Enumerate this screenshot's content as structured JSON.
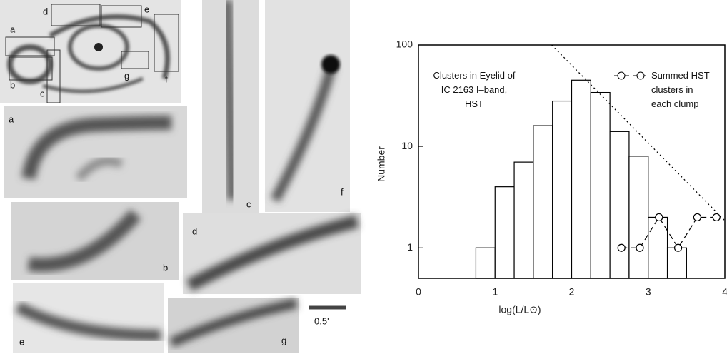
{
  "overview_labels": [
    "a",
    "b",
    "c",
    "d",
    "e",
    "f",
    "g"
  ],
  "panel_labels": [
    "a",
    "c",
    "f",
    "b",
    "d",
    "e",
    "g"
  ],
  "scale_label": "0.5'",
  "chart_data": {
    "type": "histogram",
    "annotation": "Clusters in Eyelid of IC 2163 I–band, HST",
    "xlabel": "log(L/L⊙)",
    "ylabel": "Number",
    "bins": [
      0.75,
      1.0,
      1.25,
      1.5,
      1.75,
      2.0,
      2.25,
      2.5,
      2.75,
      3.0,
      3.25,
      3.5
    ],
    "values": [
      1,
      4,
      7,
      16,
      28,
      45,
      34,
      14,
      8,
      2,
      1
    ],
    "color": "#000000",
    "reference_line": {
      "x": [
        1.74,
        4
      ],
      "values": [
        100,
        1.85
      ]
    },
    "series": [
      {
        "name": "Summed HST clusters in each clump",
        "color": "#000000",
        "x": [
          2.65,
          2.89,
          3.14,
          3.39,
          3.64,
          3.89
        ],
        "values": [
          1,
          1,
          2,
          1,
          2,
          2
        ]
      }
    ],
    "xlim": [
      0,
      4
    ],
    "ylim": [
      0.5,
      100
    ],
    "xticks": [
      0,
      1,
      2,
      3,
      4
    ],
    "yticks": [
      1,
      10,
      100
    ],
    "log_y": true
  }
}
